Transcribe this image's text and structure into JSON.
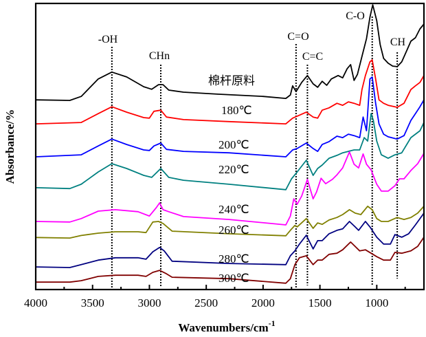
{
  "chart_data": {
    "type": "line",
    "title": "",
    "xlabel": "Wavenumbers/cm",
    "xlabel_superscript": "-1",
    "ylabel": "Absorbance/%",
    "xlim": [
      4000,
      585
    ],
    "ylim": [
      0,
      100
    ],
    "x_reversed": true,
    "grid": false,
    "legend": "inline labels",
    "x_ticks": [
      4000,
      3500,
      3000,
      2500,
      2000,
      1500,
      1000
    ],
    "x_tick_labels": [
      "4000",
      "3500",
      "3000",
      "2500",
      "2000",
      "1500",
      "1000"
    ],
    "x_minor_ticks": [
      3750,
      3250,
      2750,
      2250,
      1750,
      1250,
      750
    ],
    "annotations": [
      {
        "label": "-OH",
        "x": 3330
      },
      {
        "label": "CHn",
        "x": 2900
      },
      {
        "label": "C=O",
        "x": 1710
      },
      {
        "label": "C=C",
        "x": 1610
      },
      {
        "label": "C-O",
        "x": 1040
      },
      {
        "label": "CH",
        "x": 820
      }
    ],
    "series": [
      {
        "name": "棉杆原料",
        "color": "#000000",
        "x": [
          4000,
          3700,
          3600,
          3450,
          3330,
          3200,
          3050,
          2980,
          2920,
          2880,
          2830,
          2700,
          2400,
          2000,
          1800,
          1760,
          1740,
          1710,
          1660,
          1610,
          1560,
          1520,
          1480,
          1440,
          1400,
          1340,
          1300,
          1260,
          1230,
          1200,
          1170,
          1130,
          1090,
          1060,
          1035,
          1000,
          970,
          940,
          900,
          860,
          820,
          780,
          740,
          700,
          660,
          620,
          585
        ],
        "y": [
          66.3,
          66.1,
          67.5,
          73.6,
          76.0,
          74.3,
          70.9,
          70.0,
          71.6,
          71.6,
          69.7,
          69.0,
          68.3,
          67.5,
          66.8,
          68.0,
          71.2,
          69.2,
          72.4,
          74.8,
          71.9,
          70.7,
          72.8,
          71.4,
          73.6,
          74.8,
          74.0,
          77.2,
          78.6,
          73.1,
          75.2,
          81.5,
          87.7,
          95.2,
          99.5,
          94.0,
          85.6,
          80.8,
          79.1,
          78.1,
          77.9,
          79.6,
          83.2,
          86.8,
          88.0,
          91.1,
          92.8
        ]
      },
      {
        "name": "180℃",
        "color": "#ff0000",
        "x": [
          4000,
          3600,
          3450,
          3330,
          3200,
          3050,
          3000,
          2960,
          2900,
          2850,
          2700,
          2300,
          1800,
          1740,
          1700,
          1620,
          1560,
          1520,
          1480,
          1420,
          1350,
          1300,
          1250,
          1200,
          1150,
          1130,
          1100,
          1060,
          1040,
          1010,
          980,
          940,
          900,
          820,
          760,
          700,
          660,
          620,
          585
        ],
        "y": [
          57.9,
          58.4,
          61.5,
          63.9,
          62.0,
          60.1,
          59.9,
          62.3,
          62.7,
          60.3,
          59.4,
          58.7,
          57.9,
          59.9,
          60.6,
          62.0,
          60.3,
          59.9,
          62.7,
          63.5,
          65.1,
          64.4,
          65.6,
          65.1,
          64.4,
          69.9,
          74.8,
          79.6,
          80.3,
          73.6,
          66.3,
          65.1,
          64.4,
          63.7,
          65.1,
          69.9,
          71.2,
          72.4,
          74.8
        ]
      },
      {
        "name": "200℃",
        "color": "#0000ff",
        "x": [
          4000,
          3600,
          3450,
          3330,
          3200,
          3050,
          3000,
          2960,
          2900,
          2850,
          2700,
          2300,
          1800,
          1740,
          1700,
          1620,
          1560,
          1520,
          1480,
          1420,
          1350,
          1300,
          1250,
          1200,
          1150,
          1120,
          1090,
          1060,
          1040,
          1010,
          980,
          940,
          900,
          820,
          760,
          700,
          660,
          620,
          585
        ],
        "y": [
          46.4,
          47.1,
          50.2,
          52.6,
          50.7,
          48.8,
          48.6,
          50.2,
          51.2,
          49.0,
          48.3,
          47.8,
          46.4,
          48.8,
          49.3,
          51.2,
          49.3,
          48.3,
          50.7,
          51.7,
          53.6,
          53.1,
          54.3,
          53.8,
          53.1,
          60.3,
          55.5,
          73.6,
          74.3,
          65.1,
          57.9,
          54.3,
          53.4,
          52.6,
          53.8,
          59.1,
          61.5,
          63.9,
          66.3
        ]
      },
      {
        "name": "220℃",
        "color": "#008080",
        "x": [
          4000,
          3700,
          3600,
          3450,
          3330,
          3200,
          3050,
          2980,
          2900,
          2830,
          2700,
          2300,
          1800,
          1750,
          1700,
          1620,
          1560,
          1520,
          1480,
          1420,
          1350,
          1300,
          1250,
          1200,
          1150,
          1110,
          1080,
          1050,
          1030,
          1000,
          960,
          900,
          840,
          780,
          700,
          620,
          585
        ],
        "y": [
          35.6,
          35.3,
          36.8,
          41.1,
          44.0,
          42.3,
          39.9,
          39.2,
          42.3,
          39.2,
          38.2,
          36.8,
          34.9,
          38.7,
          41.1,
          45.2,
          39.9,
          42.3,
          43.5,
          45.9,
          46.9,
          47.8,
          48.3,
          48.8,
          48.8,
          53.1,
          51.9,
          61.5,
          59.1,
          51.9,
          47.1,
          45.9,
          47.1,
          47.8,
          53.1,
          55.5,
          58.4
        ]
      },
      {
        "name": "240℃",
        "color": "#ff00ff",
        "x": [
          4000,
          3700,
          3600,
          3450,
          3300,
          3100,
          3000,
          2940,
          2910,
          2880,
          2830,
          2700,
          2300,
          1800,
          1760,
          1730,
          1700,
          1660,
          1610,
          1560,
          1530,
          1490,
          1450,
          1390,
          1350,
          1300,
          1240,
          1200,
          1160,
          1120,
          1090,
          1050,
          1000,
          960,
          900,
          840,
          800,
          760,
          700,
          640,
          585
        ],
        "y": [
          23.8,
          23.6,
          24.8,
          27.4,
          27.9,
          27.2,
          25.7,
          28.6,
          30.3,
          27.9,
          27.2,
          25.5,
          24.5,
          22.6,
          25.7,
          31.7,
          29.8,
          32.7,
          38.5,
          31.7,
          34.1,
          38.9,
          37.0,
          38.5,
          40.1,
          42.5,
          48.1,
          43.8,
          42.5,
          47.4,
          43.8,
          41.8,
          36.8,
          34.4,
          34.4,
          36.3,
          38.7,
          38.7,
          41.6,
          44.0,
          47.6
        ]
      },
      {
        "name": "260℃",
        "color": "#808000",
        "x": [
          4000,
          3700,
          3600,
          3450,
          3300,
          3100,
          3030,
          2970,
          2920,
          2880,
          2800,
          2300,
          1800,
          1760,
          1720,
          1700,
          1620,
          1560,
          1520,
          1480,
          1420,
          1350,
          1300,
          1240,
          1190,
          1140,
          1080,
          1040,
          1000,
          960,
          900,
          820,
          760,
          700,
          640,
          585
        ],
        "y": [
          18.2,
          18.0,
          18.9,
          19.7,
          20.2,
          20.2,
          19.9,
          23.6,
          23.8,
          23.1,
          20.4,
          19.5,
          18.8,
          20.7,
          22.4,
          21.9,
          24.8,
          21.4,
          23.3,
          22.8,
          24.3,
          25.2,
          26.2,
          27.9,
          26.7,
          26.2,
          29.1,
          27.9,
          24.8,
          23.8,
          23.8,
          25.2,
          24.5,
          25.2,
          26.7,
          29.1
        ]
      },
      {
        "name": "280℃",
        "color": "#000080",
        "x": [
          4000,
          3700,
          3600,
          3450,
          3300,
          3100,
          3030,
          2970,
          2910,
          2870,
          2800,
          2300,
          1800,
          1760,
          1720,
          1680,
          1620,
          1560,
          1520,
          1480,
          1420,
          1350,
          1300,
          1240,
          1190,
          1160,
          1100,
          1060,
          1000,
          940,
          880,
          840,
          780,
          720,
          660,
          585
        ],
        "y": [
          7.9,
          7.7,
          8.7,
          10.3,
          11.1,
          11.1,
          10.6,
          13.2,
          14.7,
          13.5,
          9.9,
          9.1,
          8.7,
          11.8,
          13.5,
          15.9,
          19.0,
          14.2,
          17.1,
          17.1,
          19.5,
          20.7,
          21.2,
          23.8,
          21.9,
          20.7,
          23.8,
          21.9,
          18.3,
          15.9,
          15.9,
          19.2,
          18.3,
          19.5,
          22.6,
          26.7
        ]
      },
      {
        "name": "300℃",
        "color": "#800000",
        "x": [
          4000,
          3700,
          3600,
          3450,
          3300,
          3100,
          3030,
          2970,
          2910,
          2850,
          2800,
          2300,
          1800,
          1760,
          1720,
          1680,
          1620,
          1560,
          1520,
          1480,
          1420,
          1350,
          1300,
          1230,
          1150,
          1100,
          1050,
          1000,
          940,
          880,
          840,
          780,
          700,
          640,
          585
        ],
        "y": [
          2.6,
          2.6,
          3.1,
          4.6,
          5.0,
          5.0,
          4.6,
          6.0,
          6.7,
          5.5,
          4.3,
          3.8,
          2.2,
          3.8,
          8.7,
          11.1,
          11.8,
          8.7,
          10.3,
          10.3,
          12.3,
          12.7,
          13.9,
          16.6,
          13.5,
          13.9,
          12.7,
          11.5,
          10.3,
          10.3,
          13.0,
          12.7,
          13.5,
          15.1,
          18.3
        ]
      }
    ]
  }
}
